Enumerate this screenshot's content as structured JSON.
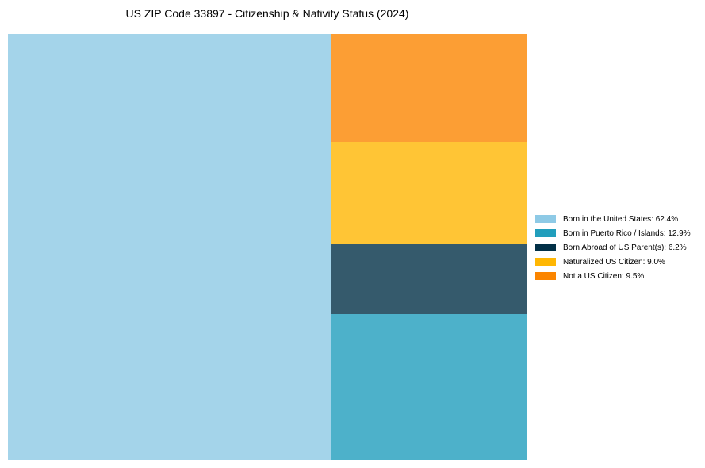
{
  "chart_data": {
    "type": "treemap",
    "title": "US ZIP Code 33897 - Citizenship & Nativity Status (2024)",
    "series": [
      {
        "name": "Born in the United States",
        "value": 62.4,
        "label": "Born in the United States: 62.4%",
        "color": "#8ecae6",
        "fill": "#a4d4ea"
      },
      {
        "name": "Born in Puerto Rico / Islands",
        "value": 12.9,
        "label": "Born in Puerto Rico / Islands: 12.9%",
        "color": "#219ebc",
        "fill": "#4db1ca"
      },
      {
        "name": "Born Abroad of US Parent(s)",
        "value": 6.2,
        "label": "Born Abroad of US Parent(s): 6.2%",
        "color": "#023047",
        "fill": "#355a6c"
      },
      {
        "name": "Naturalized US Citizen",
        "value": 9.0,
        "label": "Naturalized US Citizen: 9.0%",
        "color": "#ffb703",
        "fill": "#ffc535"
      },
      {
        "name": "Not a US Citizen",
        "value": 9.5,
        "label": "Not a US Citizen: 9.5%",
        "color": "#fb8500",
        "fill": "#fc9e34"
      }
    ],
    "legend_position": "right"
  }
}
